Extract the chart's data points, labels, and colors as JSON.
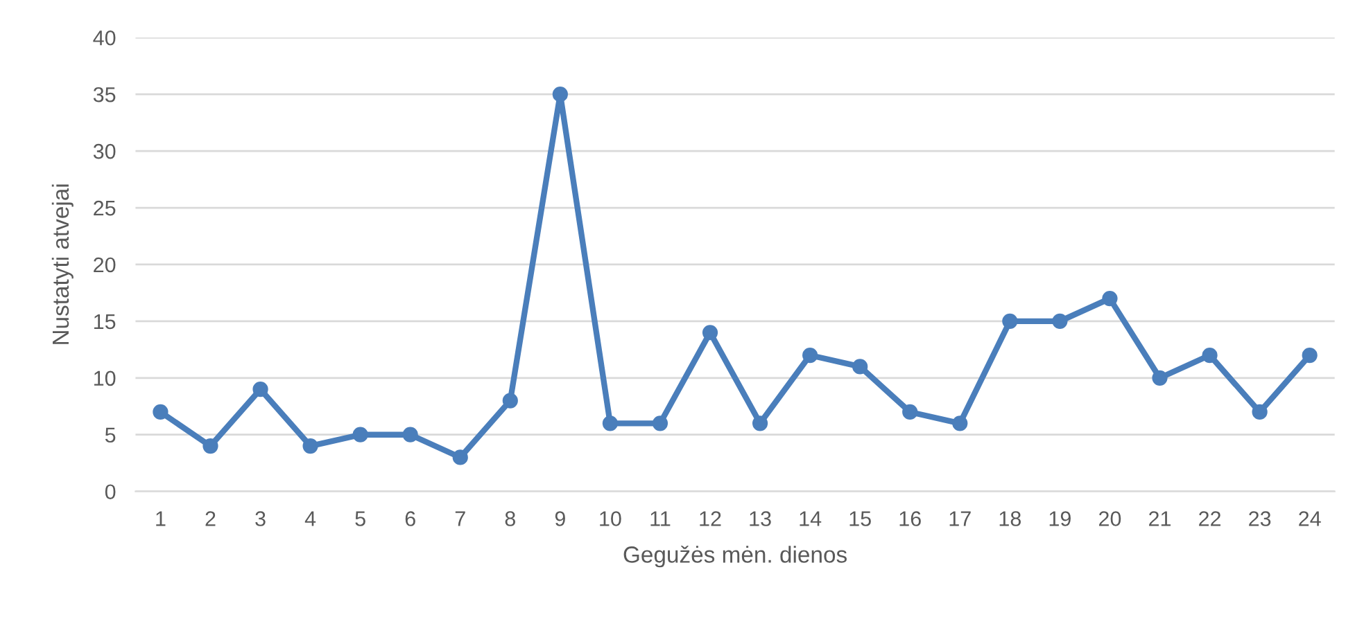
{
  "chart_data": {
    "type": "line",
    "xlabel": "Gegužės mėn. dienos",
    "ylabel": "Nustatyti atvejai",
    "categories": [
      "1",
      "2",
      "3",
      "4",
      "5",
      "6",
      "7",
      "8",
      "9",
      "10",
      "11",
      "12",
      "13",
      "14",
      "15",
      "16",
      "17",
      "18",
      "19",
      "20",
      "21",
      "22",
      "23",
      "24"
    ],
    "series": [
      {
        "color": "#4a7ebb",
        "values": [
          7,
          4,
          9,
          4,
          5,
          5,
          3,
          8,
          35,
          6,
          6,
          14,
          6,
          12,
          11,
          7,
          6,
          15,
          15,
          17,
          10,
          12,
          7,
          12
        ]
      }
    ],
    "ylim": [
      0,
      40
    ],
    "yticks": [
      0,
      5,
      10,
      15,
      20,
      25,
      30,
      35,
      40
    ],
    "grid": "y",
    "marker": "circle",
    "line_style": "solid",
    "legend": false
  }
}
